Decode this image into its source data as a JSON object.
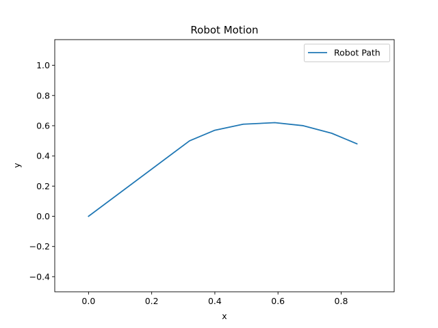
{
  "chart_data": {
    "type": "line",
    "title": "Robot Motion",
    "xlabel": "x",
    "ylabel": "y",
    "xlim": [
      -0.107,
      0.968
    ],
    "ylim": [
      -0.5,
      1.17
    ],
    "xticks": [
      0.0,
      0.2,
      0.4,
      0.6,
      0.8
    ],
    "xtick_labels": [
      "0.0",
      "0.2",
      "0.4",
      "0.6",
      "0.8"
    ],
    "yticks": [
      -0.4,
      -0.2,
      0.0,
      0.2,
      0.4,
      0.6,
      0.8,
      1.0
    ],
    "ytick_labels": [
      "−0.4",
      "−0.2",
      "0.0",
      "0.2",
      "0.4",
      "0.6",
      "0.8",
      "1.0"
    ],
    "grid": false,
    "legend": {
      "placement": "upper-right"
    },
    "series": [
      {
        "name": "Robot Path",
        "color": "#1f77b4",
        "x": [
          0.0,
          0.32,
          0.4,
          0.49,
          0.59,
          0.68,
          0.77,
          0.85
        ],
        "y": [
          0.0,
          0.5,
          0.57,
          0.61,
          0.62,
          0.6,
          0.55,
          0.48
        ]
      }
    ]
  }
}
